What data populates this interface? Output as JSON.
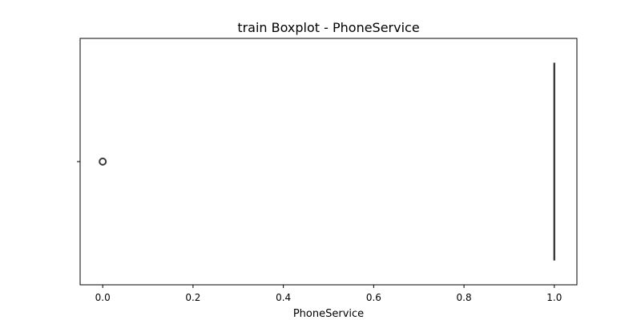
{
  "chart_data": {
    "type": "box",
    "title": "train Boxplot - PhoneService",
    "xlabel": "PhoneService",
    "ylabel": "",
    "orientation": "horizontal",
    "xlim": [
      -0.05,
      1.05
    ],
    "xticks": [
      0.0,
      0.2,
      0.4,
      0.6,
      0.8,
      1.0
    ],
    "xtick_labels": [
      "0.0",
      "0.2",
      "0.4",
      "0.6",
      "0.8",
      "1.0"
    ],
    "grid": false,
    "box": {
      "min": 1.0,
      "q1": 1.0,
      "median": 1.0,
      "q3": 1.0,
      "max": 1.0
    },
    "outliers": [
      0.0
    ],
    "colors": {
      "box": "#3a3a3a",
      "axes": "#000000"
    }
  }
}
